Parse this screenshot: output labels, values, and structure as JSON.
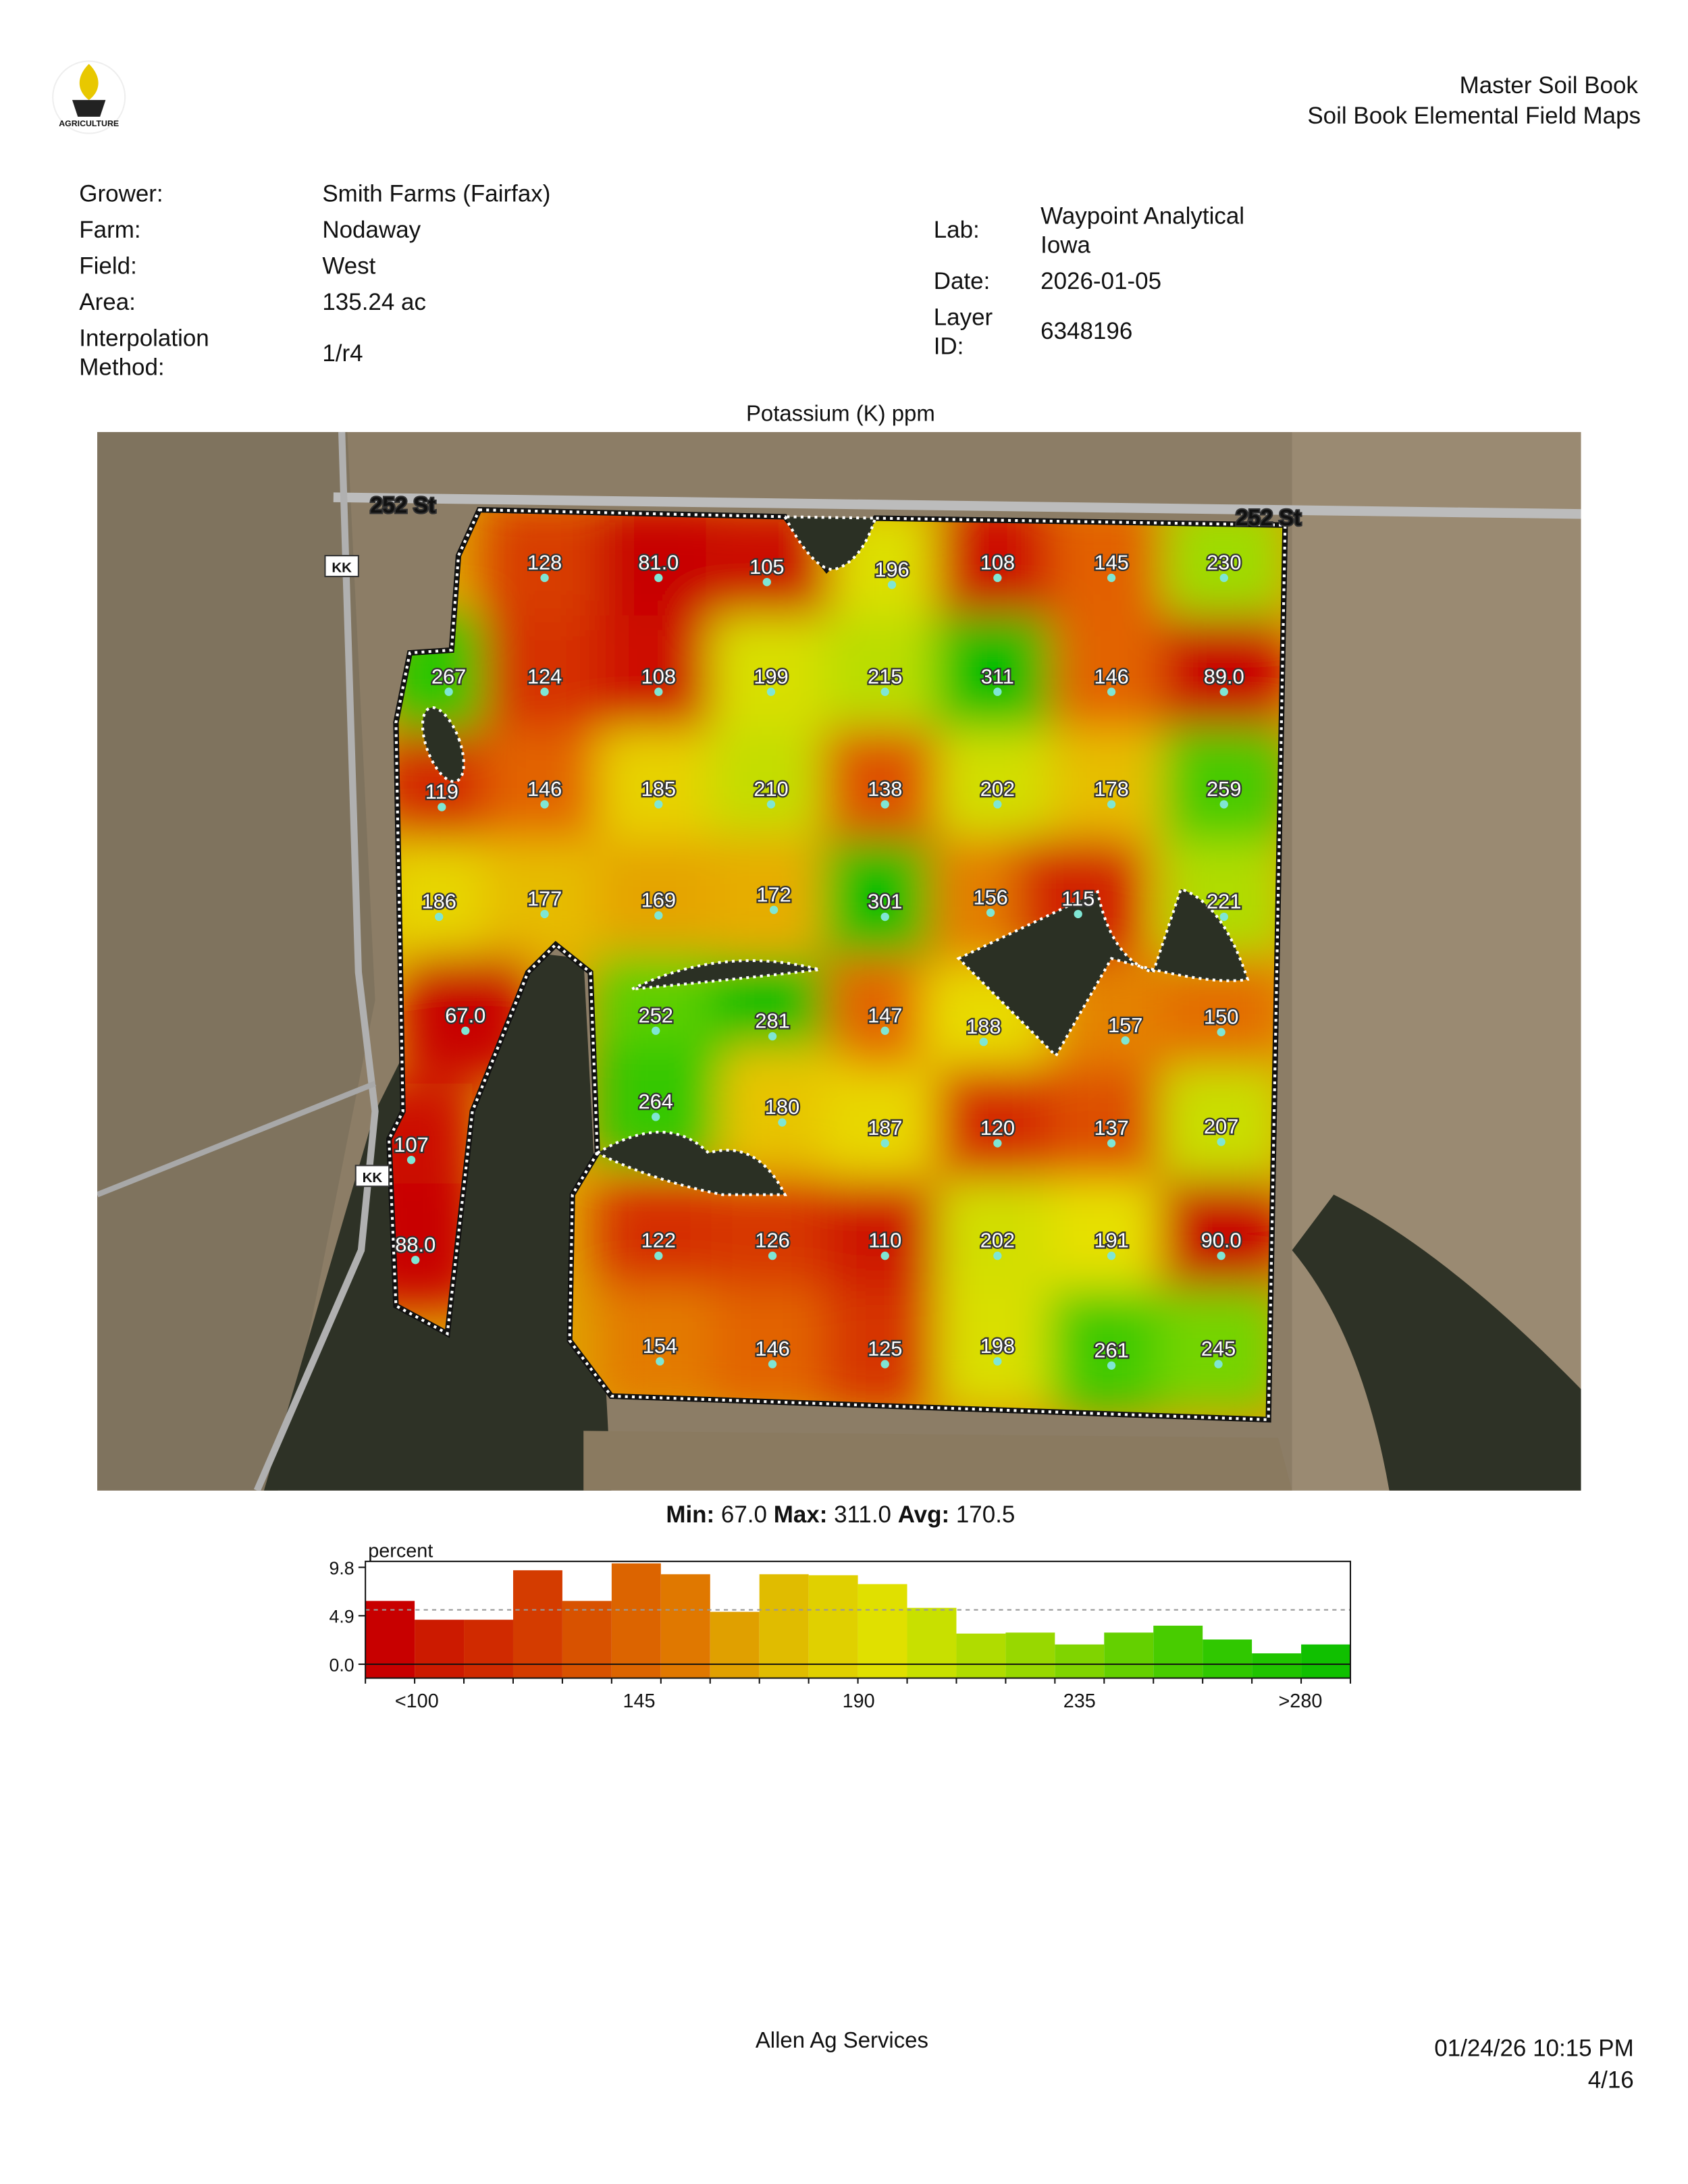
{
  "header": {
    "logo_text": "AGRICULTURE",
    "title": "Master Soil Book",
    "subtitle": "Soil Book Elemental Field Maps"
  },
  "info": {
    "left": [
      {
        "label": "Grower:",
        "value": "Smith Farms (Fairfax)"
      },
      {
        "label": "Farm:",
        "value": "Nodaway"
      },
      {
        "label": "Field:",
        "value": "West"
      },
      {
        "label": "Area:",
        "value": "135.24 ac"
      },
      {
        "label": "Interpolation Method:",
        "value": "1/r4"
      }
    ],
    "right": [
      {
        "label": "Lab:",
        "value": "Waypoint Analytical Iowa"
      },
      {
        "label": "Date:",
        "value": "2026-01-05"
      },
      {
        "label": "Layer ID:",
        "value": "6348196"
      }
    ]
  },
  "map": {
    "title": "Potassium (K) ppm",
    "road_labels": [
      "252 St",
      "252 St",
      "KK",
      "KK"
    ],
    "points": [
      "128",
      "81.0",
      "105",
      "196",
      "108",
      "145",
      "230",
      "267",
      "124",
      "108",
      "199",
      "215",
      "311",
      "146",
      "89.0",
      "119",
      "146",
      "185",
      "210",
      "138",
      "202",
      "178",
      "259",
      "186",
      "177",
      "169",
      "172",
      "301",
      "156",
      "115",
      "221",
      "67.0",
      "252",
      "281",
      "147",
      "188",
      "157",
      "150",
      "107",
      "264",
      "180",
      "187",
      "120",
      "137",
      "207",
      "88.0",
      "122",
      "126",
      "110",
      "202",
      "191",
      "90.0",
      "154",
      "146",
      "125",
      "198",
      "261",
      "245"
    ]
  },
  "summary": {
    "min_label": "Min:",
    "min": "67.0",
    "max_label": "Max:",
    "max": "311.0",
    "avg_label": "Avg:",
    "avg": "170.5"
  },
  "histogram": {
    "ylabel": "percent",
    "ylim": [
      -1.4,
      10.4
    ],
    "yticks": [
      9.8,
      4.9,
      {
        "value": 0,
        "label": "0.0"
      }
    ],
    "reference_line": 5.5,
    "values": [
      6.4,
      4.5,
      4.5,
      9.5,
      6.4,
      10.2,
      9.1,
      5.3,
      9.1,
      9.0,
      8.1,
      5.7,
      3.1,
      3.2,
      2.0,
      3.2,
      3.9,
      2.5,
      1.1,
      2.0
    ],
    "colors": [
      "#c80000",
      "#cc1a00",
      "#d02a00",
      "#d43c00",
      "#d85200",
      "#dc6400",
      "#e07800",
      "#e0a000",
      "#e0bc00",
      "#e0d000",
      "#e0e000",
      "#c8e000",
      "#b0dc00",
      "#98d800",
      "#80d400",
      "#64d000",
      "#48cc00",
      "#30c800",
      "#20c400",
      "#10c000"
    ],
    "x_labels": [
      "<100",
      "145",
      "190",
      "235",
      ">280"
    ]
  },
  "footer": {
    "company": "Allen Ag Services",
    "timestamp": "01/24/26 10:15 PM",
    "page": "4/16"
  }
}
